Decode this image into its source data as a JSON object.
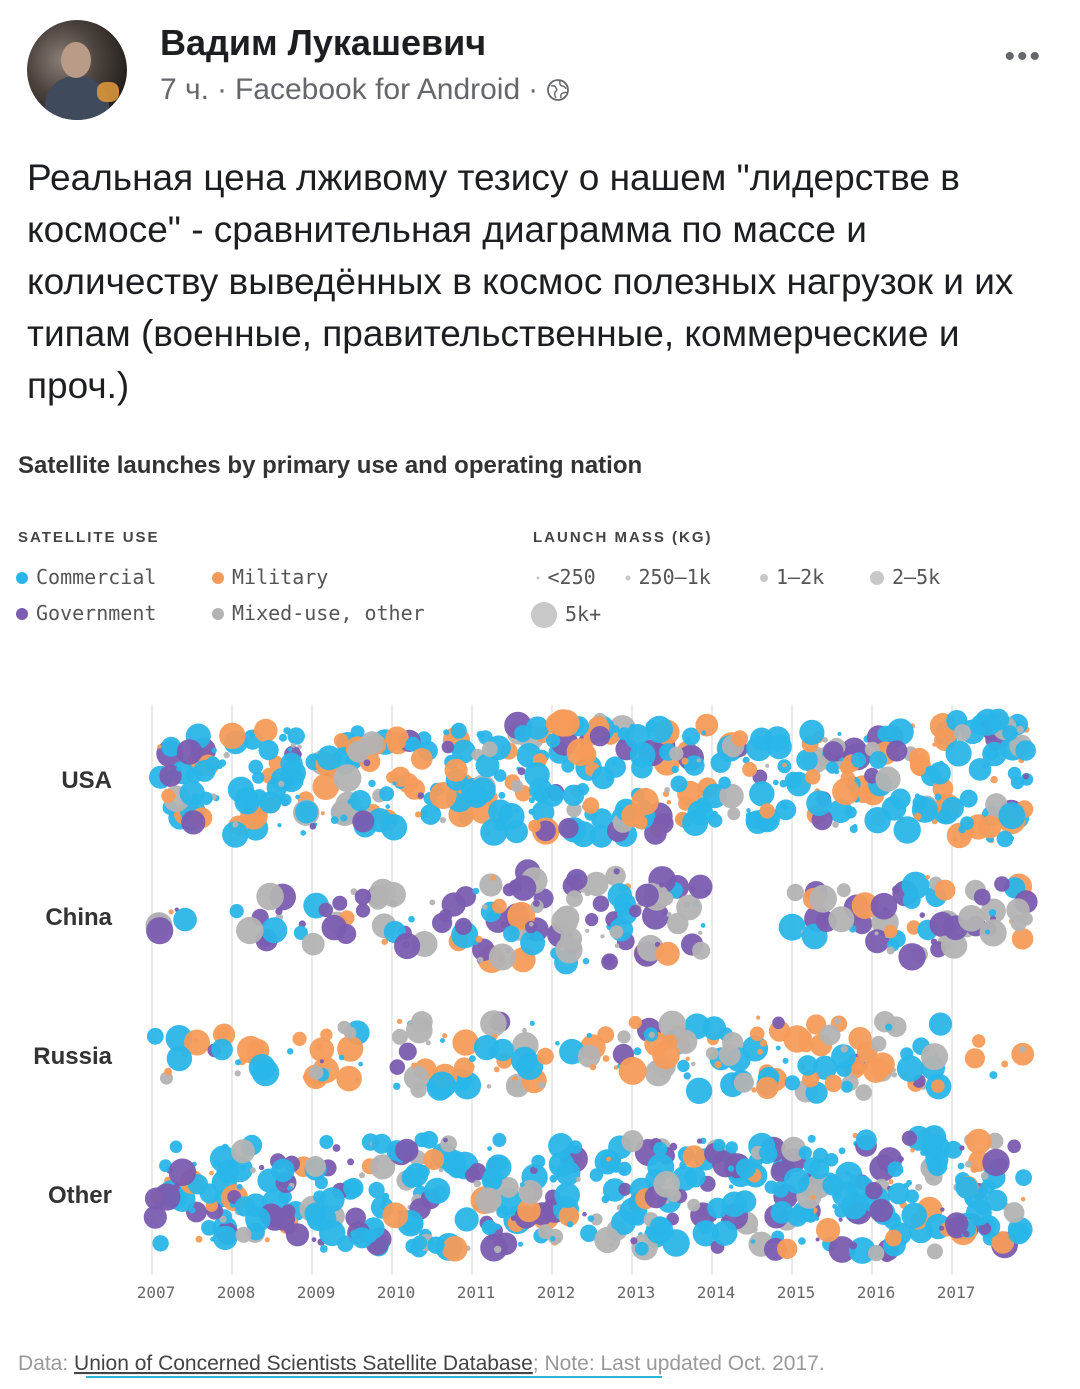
{
  "post": {
    "author": "Вадим Лукашевич",
    "time": "7 ч.",
    "source": "Facebook for Android",
    "separator": "·",
    "more_label": "•••",
    "text": "Реальная цена лживому тезису о нашем \"лидерстве в космосе\" - сравнительная диаграмма по массе и количеству выведённых в космос полезных нагрузок и их типам (военные, правительственные, коммерческие и проч.)"
  },
  "colors": {
    "Commercial": "#29b5e8",
    "Military": "#f59b5a",
    "Government": "#7a5cb0",
    "Mixed-use, other": "#b3b3b3"
  },
  "chart_data": {
    "type": "scatter",
    "title": "Satellite launches by primary use and operating nation",
    "legend_use_title": "SATELLITE USE",
    "legend_use": [
      "Commercial",
      "Military",
      "Government",
      "Mixed-use, other"
    ],
    "legend_mass_title": "LAUNCH MASS (KG)",
    "legend_mass": [
      "<250",
      "250–1k",
      "1–2k",
      "2–5k",
      "5k+"
    ],
    "rows": [
      "USA",
      "China",
      "Russia",
      "Other"
    ],
    "x_ticks": [
      "2007",
      "2008",
      "2009",
      "2010",
      "2011",
      "2012",
      "2013",
      "2014",
      "2015",
      "2016",
      "2017"
    ],
    "xlim": [
      2007,
      2018
    ],
    "series": [
      {
        "row": "USA",
        "density": [
          6,
          8,
          7,
          7,
          8,
          9,
          8,
          6,
          7,
          8,
          9
        ],
        "mix": {
          "Commercial": 0.5,
          "Military": 0.27,
          "Government": 0.1,
          "Mixed-use, other": 0.13
        }
      },
      {
        "row": "China",
        "density": [
          1,
          2,
          3,
          3,
          6,
          7,
          5,
          0,
          3,
          5,
          4
        ],
        "mix": {
          "Commercial": 0.2,
          "Military": 0.1,
          "Government": 0.35,
          "Mixed-use, other": 0.35
        }
      },
      {
        "row": "Russia",
        "density": [
          2,
          2,
          3,
          4,
          4,
          2,
          4,
          5,
          5,
          4,
          1
        ],
        "mix": {
          "Commercial": 0.3,
          "Military": 0.4,
          "Government": 0.05,
          "Mixed-use, other": 0.25
        }
      },
      {
        "row": "Other",
        "density": [
          7,
          7,
          8,
          8,
          8,
          7,
          8,
          8,
          9,
          9,
          8
        ],
        "mix": {
          "Commercial": 0.5,
          "Military": 0.1,
          "Government": 0.25,
          "Mixed-use, other": 0.15
        }
      }
    ],
    "source_prefix": "Data: ",
    "source_link": "Union of Concerned Scientists Satellite Database",
    "source_note": "; Note: Last updated Oct. 2017."
  }
}
